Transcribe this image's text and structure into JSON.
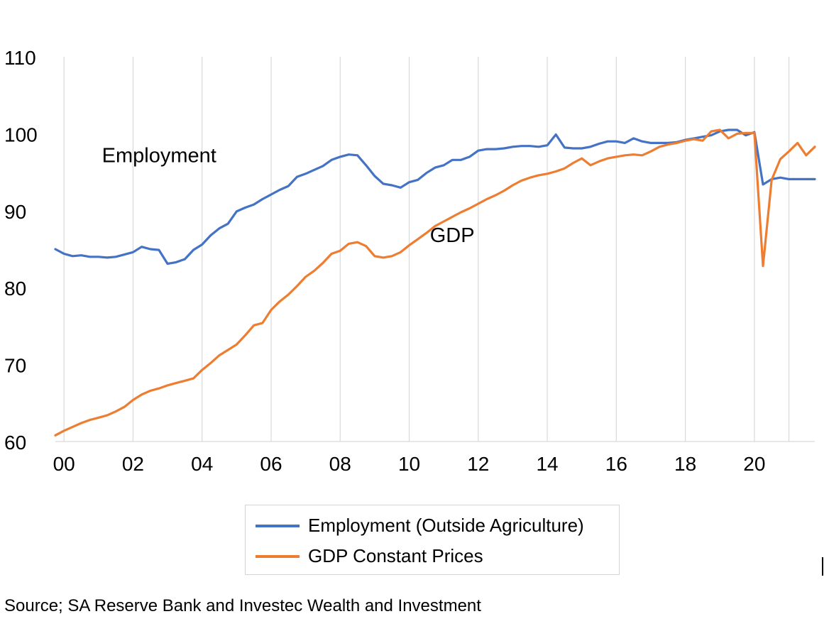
{
  "chart_data": {
    "type": "line",
    "title": "",
    "xlabel": "",
    "ylabel": "",
    "ylim": [
      60,
      110
    ],
    "yticks": [
      60,
      70,
      80,
      90,
      100,
      110
    ],
    "xlim": [
      1999.75,
      2021.75
    ],
    "xticks": [
      {
        "label": "00",
        "x": 2000
      },
      {
        "label": "02",
        "x": 2002
      },
      {
        "label": "04",
        "x": 2004
      },
      {
        "label": "06",
        "x": 2006
      },
      {
        "label": "08",
        "x": 2008
      },
      {
        "label": "10",
        "x": 2010
      },
      {
        "label": "12",
        "x": 2012
      },
      {
        "label": "14",
        "x": 2014
      },
      {
        "label": "16",
        "x": 2016
      },
      {
        "label": "18",
        "x": 2018
      },
      {
        "label": "20",
        "x": 2020
      }
    ],
    "grid": "vertical",
    "legend_position": "bottom",
    "series": [
      {
        "name": "Employment (Outside Agriculture)",
        "color": "#4472c4",
        "x": [
          1999.75,
          2000.0,
          2000.25,
          2000.5,
          2000.75,
          2001.0,
          2001.25,
          2001.5,
          2001.75,
          2002.0,
          2002.25,
          2002.5,
          2002.75,
          2003.0,
          2003.25,
          2003.5,
          2003.75,
          2004.0,
          2004.25,
          2004.5,
          2004.75,
          2005.0,
          2005.25,
          2005.5,
          2005.75,
          2006.0,
          2006.25,
          2006.5,
          2006.75,
          2007.0,
          2007.25,
          2007.5,
          2007.75,
          2008.0,
          2008.25,
          2008.5,
          2008.75,
          2009.0,
          2009.25,
          2009.5,
          2009.75,
          2010.0,
          2010.25,
          2010.5,
          2010.75,
          2011.0,
          2011.25,
          2011.5,
          2011.75,
          2012.0,
          2012.25,
          2012.5,
          2012.75,
          2013.0,
          2013.25,
          2013.5,
          2013.75,
          2014.0,
          2014.25,
          2014.5,
          2014.75,
          2015.0,
          2015.25,
          2015.5,
          2015.75,
          2016.0,
          2016.25,
          2016.5,
          2016.75,
          2017.0,
          2017.25,
          2017.5,
          2017.75,
          2018.0,
          2018.25,
          2018.5,
          2018.75,
          2019.0,
          2019.25,
          2019.5,
          2019.75,
          2020.0,
          2020.25,
          2020.5,
          2020.75,
          2021.0,
          2021.25,
          2021.5,
          2021.75
        ],
        "values": [
          85.0,
          84.4,
          84.1,
          84.2,
          84.0,
          84.0,
          83.9,
          84.0,
          84.3,
          84.6,
          85.3,
          85.0,
          84.9,
          83.1,
          83.3,
          83.7,
          84.9,
          85.6,
          86.8,
          87.7,
          88.3,
          89.9,
          90.4,
          90.8,
          91.5,
          92.1,
          92.7,
          93.2,
          94.4,
          94.8,
          95.3,
          95.8,
          96.6,
          97.0,
          97.3,
          97.2,
          95.9,
          94.5,
          93.5,
          93.3,
          93.0,
          93.7,
          94.0,
          94.9,
          95.6,
          95.9,
          96.6,
          96.6,
          97.0,
          97.8,
          98.0,
          98.0,
          98.1,
          98.3,
          98.4,
          98.4,
          98.3,
          98.5,
          99.9,
          98.2,
          98.1,
          98.1,
          98.3,
          98.7,
          99.0,
          99.0,
          98.8,
          99.4,
          99.0,
          98.8,
          98.8,
          98.8,
          98.9,
          99.2,
          99.4,
          99.6,
          99.8,
          100.3,
          100.5,
          100.5,
          99.8,
          100.2,
          93.4,
          94.1,
          94.3,
          94.1,
          94.1,
          94.1,
          94.1
        ]
      },
      {
        "name": "GDP Constant Prices",
        "color": "#ed7d31",
        "x": [
          1999.75,
          2000.0,
          2000.25,
          2000.5,
          2000.75,
          2001.0,
          2001.25,
          2001.5,
          2001.75,
          2002.0,
          2002.25,
          2002.5,
          2002.75,
          2003.0,
          2003.25,
          2003.5,
          2003.75,
          2004.0,
          2004.25,
          2004.5,
          2004.75,
          2005.0,
          2005.25,
          2005.5,
          2005.75,
          2006.0,
          2006.25,
          2006.5,
          2006.75,
          2007.0,
          2007.25,
          2007.5,
          2007.75,
          2008.0,
          2008.25,
          2008.5,
          2008.75,
          2009.0,
          2009.25,
          2009.5,
          2009.75,
          2010.0,
          2010.25,
          2010.5,
          2010.75,
          2011.0,
          2011.25,
          2011.5,
          2011.75,
          2012.0,
          2012.25,
          2012.5,
          2012.75,
          2013.0,
          2013.25,
          2013.5,
          2013.75,
          2014.0,
          2014.25,
          2014.5,
          2014.75,
          2015.0,
          2015.25,
          2015.5,
          2015.75,
          2016.0,
          2016.25,
          2016.5,
          2016.75,
          2017.0,
          2017.25,
          2017.5,
          2017.75,
          2018.0,
          2018.25,
          2018.5,
          2018.75,
          2019.0,
          2019.25,
          2019.5,
          2019.75,
          2020.0,
          2020.25,
          2020.5,
          2020.75,
          2021.0,
          2021.25,
          2021.5,
          2021.75
        ],
        "values": [
          60.8,
          61.4,
          61.9,
          62.4,
          62.8,
          63.1,
          63.4,
          63.9,
          64.5,
          65.4,
          66.1,
          66.6,
          66.9,
          67.3,
          67.6,
          67.9,
          68.2,
          69.3,
          70.2,
          71.2,
          71.9,
          72.6,
          73.8,
          75.1,
          75.4,
          77.1,
          78.2,
          79.1,
          80.2,
          81.4,
          82.2,
          83.2,
          84.4,
          84.8,
          85.7,
          85.9,
          85.4,
          84.1,
          83.9,
          84.1,
          84.6,
          85.5,
          86.3,
          87.1,
          88.0,
          88.6,
          89.2,
          89.8,
          90.3,
          90.9,
          91.5,
          92.0,
          92.6,
          93.3,
          93.9,
          94.3,
          94.6,
          94.8,
          95.1,
          95.5,
          96.2,
          96.8,
          95.9,
          96.4,
          96.8,
          97.0,
          97.2,
          97.3,
          97.2,
          97.7,
          98.3,
          98.6,
          98.8,
          99.1,
          99.3,
          99.1,
          100.3,
          100.5,
          99.4,
          100.0,
          100.1,
          100.1,
          82.8,
          94.0,
          96.7,
          97.7,
          98.8,
          97.2,
          98.3
        ]
      }
    ],
    "annotations": [
      {
        "text": "Employment",
        "x": 2001.1,
        "y": 96.3
      },
      {
        "text": "GDP",
        "x": 2010.6,
        "y": 85.9
      }
    ]
  },
  "source_note": "Source; SA Reserve Bank and Investec Wealth and Investment"
}
